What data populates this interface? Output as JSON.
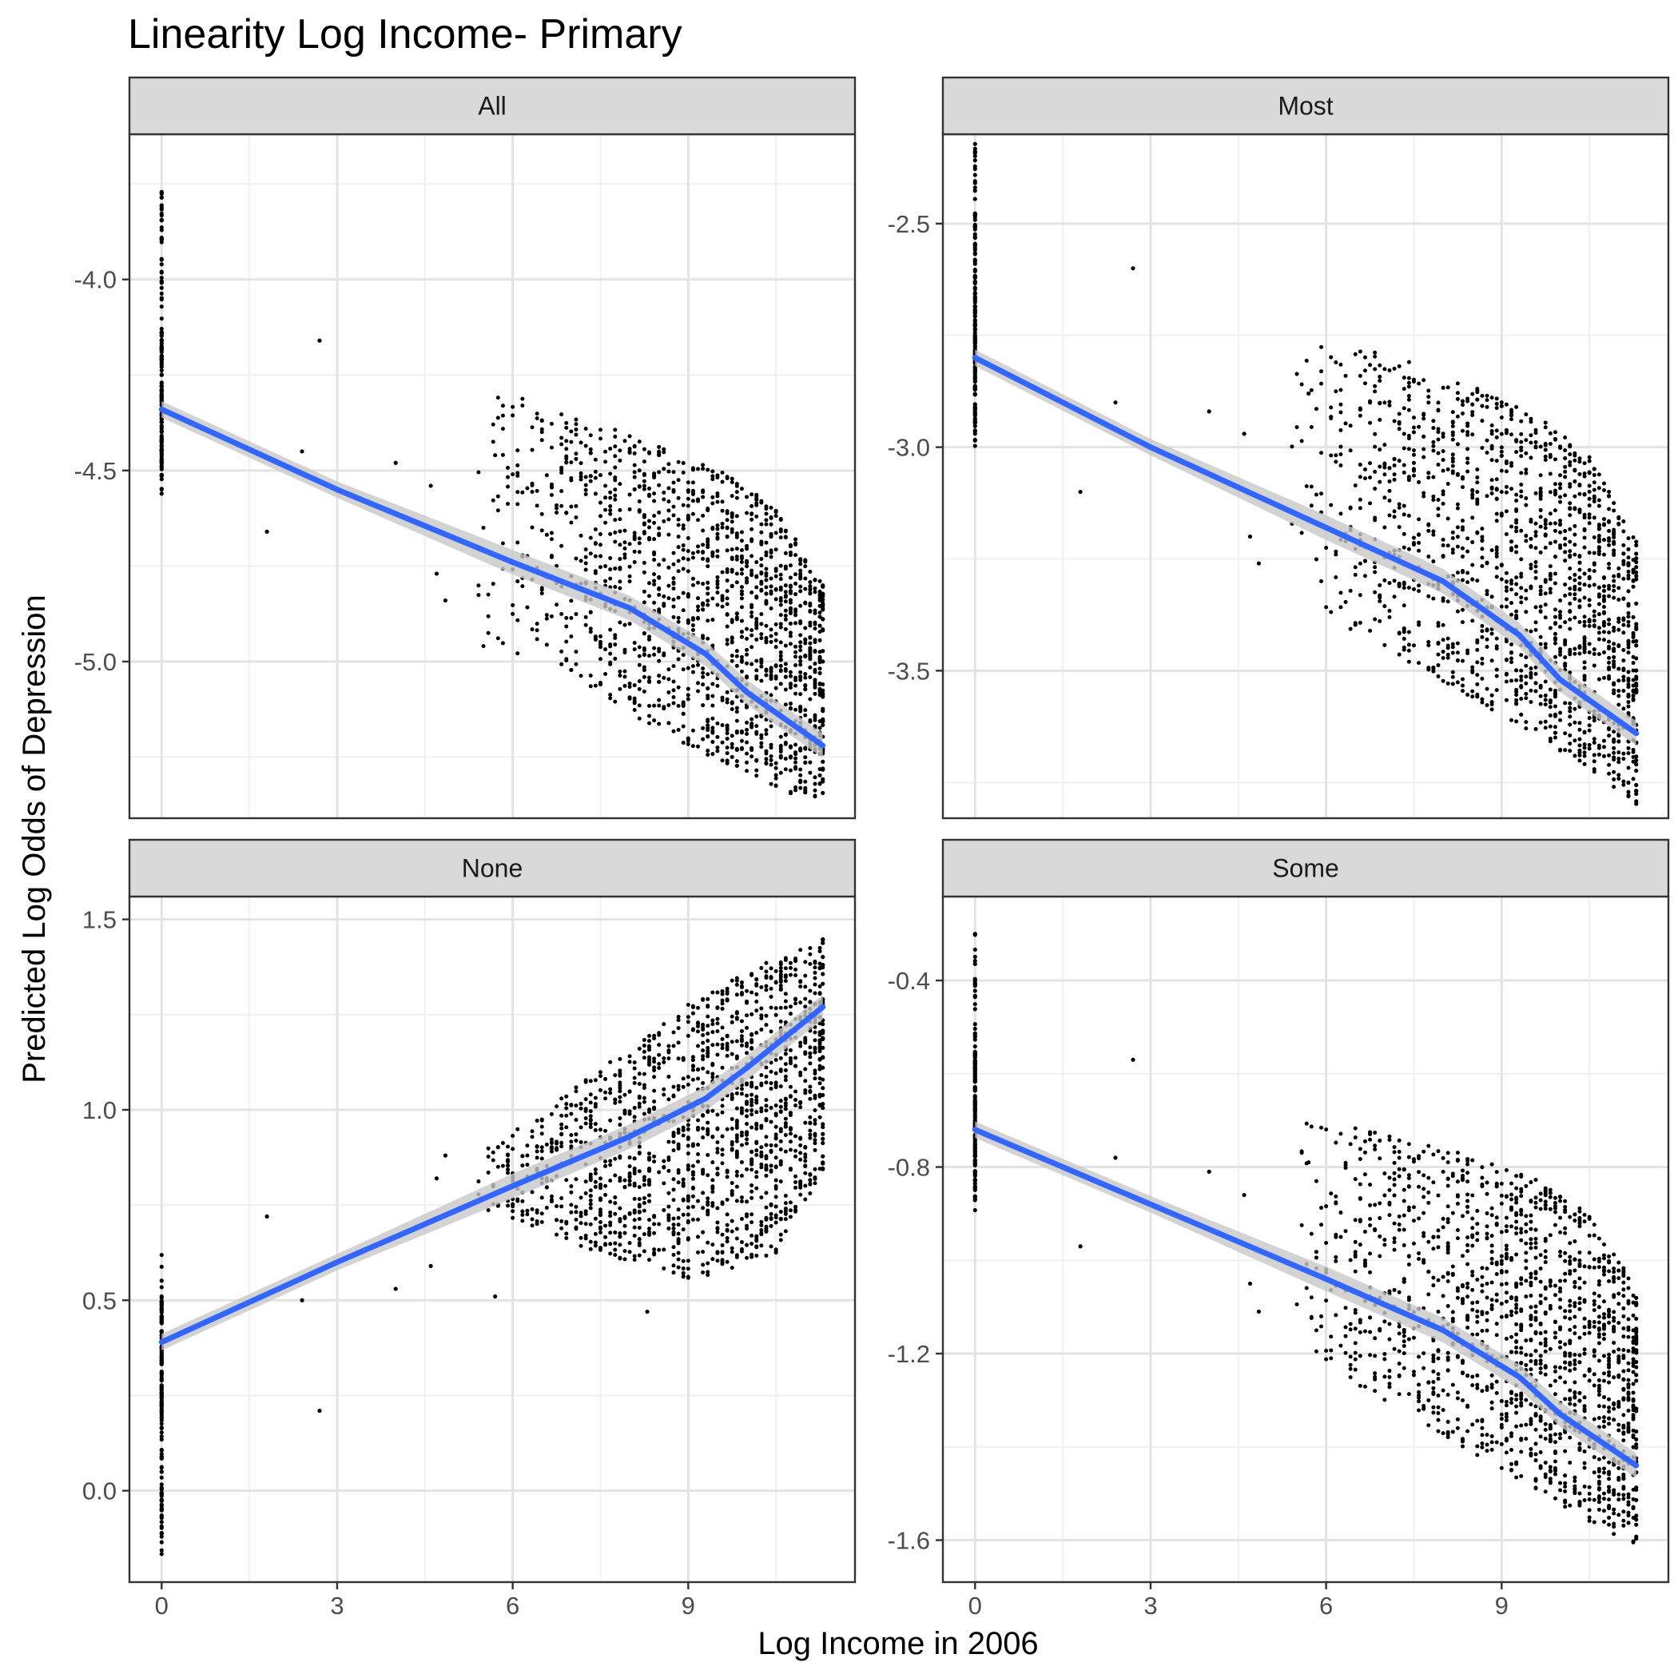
{
  "chart_data": {
    "type": "scatter",
    "title": "Linearity Log Income- Primary",
    "xlabel": "Log Income in 2006",
    "ylabel": "Predicted Log Odds of Depression",
    "x_ticks": [
      0,
      3,
      6,
      9
    ],
    "x_range": [
      -0.55,
      11.85
    ],
    "grid": true,
    "smooth_color": "#3366ff",
    "ci_color": "#c8c8c8",
    "point_color": "#000000",
    "strip_fill": "#d9d9d9",
    "panels": [
      {
        "label": "All",
        "y_range": [
          -5.41,
          -3.62
        ],
        "y_ticks": [
          -4.0,
          -4.5,
          -5.0
        ],
        "y_tick_labels": [
          "-4.0",
          "-4.5",
          "-5.0"
        ],
        "show_x_axis": false,
        "zero_column": {
          "min": -4.57,
          "max": -3.77,
          "dense_min": -4.48,
          "dense_max": -4.13
        },
        "cloud": {
          "lower": [
            [
              5.3,
              -4.95
            ],
            [
              7.0,
              -5.05
            ],
            [
              9.0,
              -5.22
            ],
            [
              10.5,
              -5.33
            ],
            [
              11.3,
              -5.38
            ]
          ],
          "upper": [
            [
              3.0,
              -4.15
            ],
            [
              8.3,
              -4.42
            ],
            [
              9.5,
              -4.49
            ],
            [
              10.5,
              -4.6
            ],
            [
              11.3,
              -4.79
            ]
          ]
        },
        "outliers": [
          [
            1.8,
            -4.66
          ],
          [
            2.7,
            -4.16
          ],
          [
            2.4,
            -4.45
          ],
          [
            4.0,
            -4.48
          ],
          [
            4.6,
            -4.54
          ],
          [
            4.7,
            -4.77
          ],
          [
            4.85,
            -4.84
          ],
          [
            5.7,
            -4.46
          ]
        ],
        "smooth": [
          [
            0,
            -4.34
          ],
          [
            3,
            -4.55
          ],
          [
            6,
            -4.74
          ],
          [
            8,
            -4.86
          ],
          [
            9.3,
            -4.98
          ],
          [
            10,
            -5.08
          ],
          [
            11.3,
            -5.22
          ]
        ]
      },
      {
        "label": "Most",
        "y_range": [
          -3.83,
          -2.3
        ],
        "y_ticks": [
          -2.5,
          -3.0,
          -3.5
        ],
        "y_tick_labels": [
          "-2.5",
          "-3.0",
          "-3.5"
        ],
        "show_x_axis": false,
        "zero_column": {
          "min": -3.0,
          "max": -2.32,
          "dense_min": -2.95,
          "dense_max": -2.6
        },
        "cloud": {
          "lower": [
            [
              5.3,
              -3.33
            ],
            [
              7.0,
              -3.45
            ],
            [
              9.0,
              -3.6
            ],
            [
              10.5,
              -3.72
            ],
            [
              11.3,
              -3.8
            ]
          ],
          "upper": [
            [
              3.0,
              -2.6
            ],
            [
              8.3,
              -2.85
            ],
            [
              9.5,
              -2.92
            ],
            [
              10.5,
              -3.02
            ],
            [
              11.3,
              -3.2
            ]
          ]
        },
        "outliers": [
          [
            1.8,
            -3.1
          ],
          [
            2.7,
            -2.6
          ],
          [
            2.4,
            -2.9
          ],
          [
            4.0,
            -2.92
          ],
          [
            4.6,
            -2.97
          ],
          [
            4.7,
            -3.2
          ],
          [
            4.85,
            -3.26
          ],
          [
            5.7,
            -2.88
          ]
        ],
        "smooth": [
          [
            0,
            -2.8
          ],
          [
            3,
            -3.0
          ],
          [
            6,
            -3.18
          ],
          [
            8,
            -3.3
          ],
          [
            9.3,
            -3.42
          ],
          [
            10,
            -3.52
          ],
          [
            11.3,
            -3.64
          ]
        ]
      },
      {
        "label": "None",
        "y_range": [
          -0.24,
          1.56
        ],
        "y_ticks": [
          1.5,
          1.0,
          0.5,
          0.0
        ],
        "y_tick_labels": [
          "1.5",
          "1.0",
          "0.5",
          "0.0"
        ],
        "show_x_axis": true,
        "zero_column": {
          "min": -0.17,
          "max": 0.62,
          "dense_min": 0.2,
          "dense_max": 0.5
        },
        "cloud": {
          "lower": [
            [
              5.3,
              0.75
            ],
            [
              7.0,
              0.65
            ],
            [
              9.0,
              0.55
            ],
            [
              10.5,
              0.62
            ],
            [
              11.3,
              0.84
            ]
          ],
          "upper": [
            [
              3.0,
              0.63
            ],
            [
              7.0,
              1.05
            ],
            [
              9.0,
              1.28
            ],
            [
              10.5,
              1.4
            ],
            [
              11.3,
              1.45
            ]
          ]
        },
        "outliers": [
          [
            1.8,
            0.72
          ],
          [
            2.7,
            0.21
          ],
          [
            2.4,
            0.5
          ],
          [
            4.0,
            0.53
          ],
          [
            4.6,
            0.59
          ],
          [
            4.7,
            0.82
          ],
          [
            4.85,
            0.88
          ],
          [
            5.7,
            0.51
          ],
          [
            8.3,
            0.47
          ]
        ],
        "smooth": [
          [
            0,
            0.39
          ],
          [
            3,
            0.6
          ],
          [
            6,
            0.8
          ],
          [
            8,
            0.93
          ],
          [
            9.3,
            1.03
          ],
          [
            10,
            1.11
          ],
          [
            11.3,
            1.27
          ]
        ]
      },
      {
        "label": "Some",
        "y_range": [
          -1.69,
          -0.22
        ],
        "y_ticks": [
          -0.4,
          -0.8,
          -1.2,
          -1.6
        ],
        "y_tick_labels": [
          "-0.4",
          "-0.8",
          "-1.2",
          "-1.6"
        ],
        "show_x_axis": true,
        "zero_column": {
          "min": -0.9,
          "max": -0.3,
          "dense_min": -0.85,
          "dense_max": -0.55
        },
        "cloud": {
          "lower": [
            [
              5.3,
              -1.19
            ],
            [
              7.0,
              -1.3
            ],
            [
              9.0,
              -1.45
            ],
            [
              10.5,
              -1.56
            ],
            [
              11.3,
              -1.62
            ]
          ],
          "upper": [
            [
              3.0,
              -0.6
            ],
            [
              8.3,
              -0.77
            ],
            [
              9.5,
              -0.82
            ],
            [
              10.5,
              -0.9
            ],
            [
              11.3,
              -1.06
            ]
          ]
        },
        "outliers": [
          [
            1.8,
            -0.97
          ],
          [
            2.7,
            -0.57
          ],
          [
            2.4,
            -0.78
          ],
          [
            4.0,
            -0.81
          ],
          [
            4.6,
            -0.86
          ],
          [
            4.7,
            -1.05
          ],
          [
            4.85,
            -1.11
          ],
          [
            5.7,
            -0.79
          ]
        ],
        "smooth": [
          [
            0,
            -0.72
          ],
          [
            3,
            -0.88
          ],
          [
            6,
            -1.04
          ],
          [
            8,
            -1.15
          ],
          [
            9.3,
            -1.25
          ],
          [
            10,
            -1.33
          ],
          [
            11.3,
            -1.44
          ]
        ]
      }
    ]
  }
}
